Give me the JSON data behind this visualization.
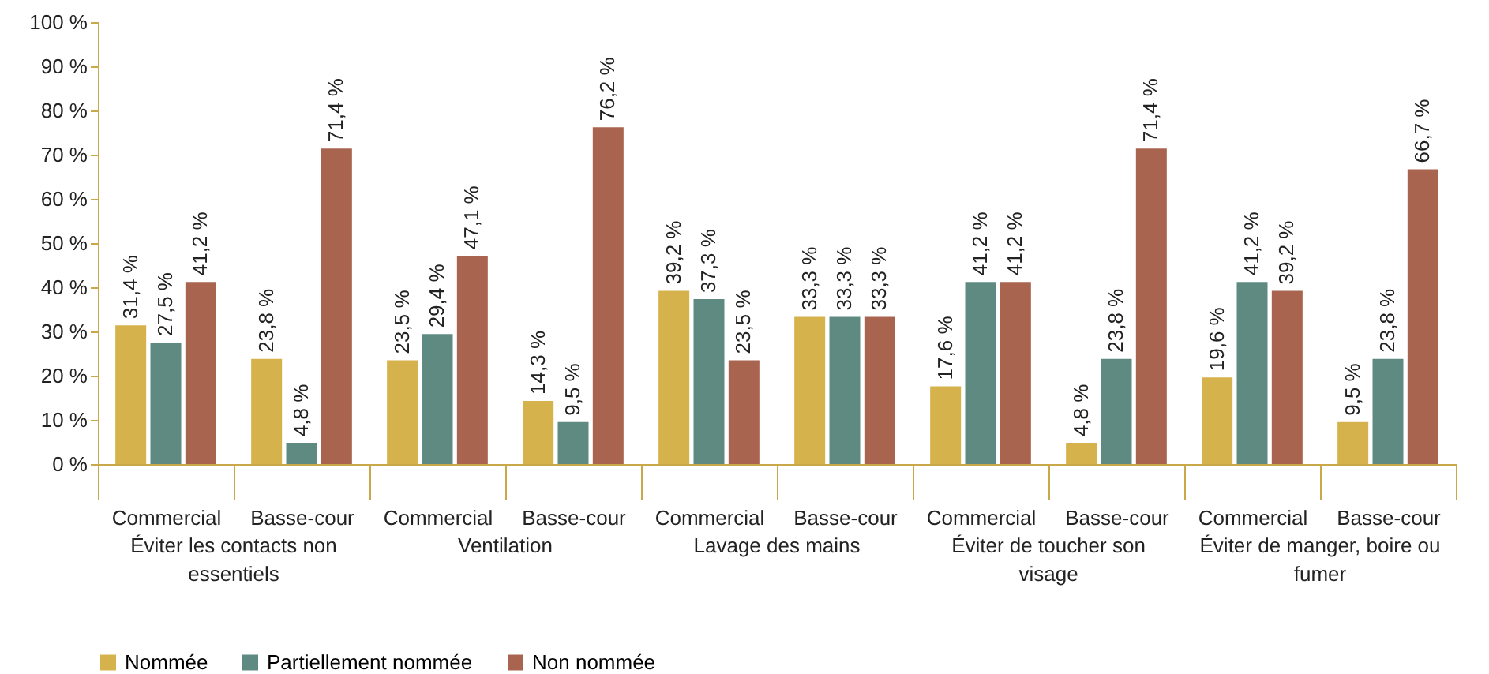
{
  "chart_data": {
    "type": "bar",
    "categories": [
      "Commercial",
      "Basse-cour",
      "Commercial",
      "Basse-cour",
      "Commercial",
      "Basse-cour",
      "Commercial",
      "Basse-cour",
      "Commercial",
      "Basse-cour"
    ],
    "annotations": [
      "Éviter les contacts non essentiels",
      "Ventilation",
      "Lavage des mains",
      "Éviter de toucher son visage",
      "Éviter de manger, boire ou fumer"
    ],
    "series": [
      {
        "name": "Nommée",
        "color": "#d6b24c",
        "values": [
          31.4,
          23.8,
          23.5,
          14.3,
          39.2,
          33.3,
          17.6,
          4.8,
          19.6,
          9.5
        ],
        "value_labels": [
          "31,4 %",
          "23,8 %",
          "23,5 %",
          "14,3 %",
          "39,2 %",
          "33,3 %",
          "17,6 %",
          "4,8 %",
          "19,6 %",
          "9,5 %"
        ]
      },
      {
        "name": "Partiellement nommée",
        "color": "#5f8a82",
        "values": [
          27.5,
          4.8,
          29.4,
          9.5,
          37.3,
          33.3,
          41.2,
          23.8,
          41.2,
          23.8
        ],
        "value_labels": [
          "27,5 %",
          "4,8 %",
          "29,4 %",
          "9,5 %",
          "37,3 %",
          "33,3 %",
          "41,2 %",
          "23,8 %",
          "41,2 %",
          "23,8 %"
        ]
      },
      {
        "name": "Non nommée",
        "color": "#a8644e",
        "values": [
          41.2,
          71.4,
          47.1,
          76.2,
          23.5,
          33.3,
          41.2,
          71.4,
          39.2,
          66.7
        ],
        "value_labels": [
          "41,2 %",
          "71,4 %",
          "47,1 %",
          "76,2 %",
          "23,5 %",
          "33,3 %",
          "41,2 %",
          "71,4 %",
          "39,2 %",
          "66,7 %"
        ]
      }
    ],
    "ylim": [
      0,
      100
    ],
    "yticks": [
      {
        "value": 0,
        "label": "0 %"
      },
      {
        "value": 10,
        "label": "10 %"
      },
      {
        "value": 20,
        "label": "20 %"
      },
      {
        "value": 30,
        "label": "30 %"
      },
      {
        "value": 40,
        "label": "40 %"
      },
      {
        "value": 50,
        "label": "50 %"
      },
      {
        "value": 60,
        "label": "60 %"
      },
      {
        "value": 70,
        "label": "70 %"
      },
      {
        "value": 80,
        "label": "80 %"
      },
      {
        "value": 90,
        "label": "90 %"
      },
      {
        "value": 100,
        "label": "100 %"
      }
    ],
    "legend": "bottom"
  }
}
